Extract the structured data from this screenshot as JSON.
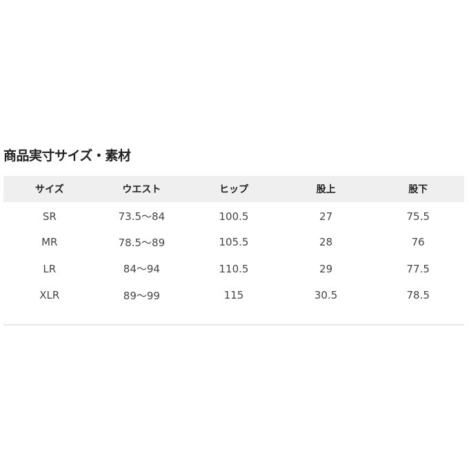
{
  "title": "商品実寸サイズ・素材",
  "table": {
    "headers": [
      "サイズ",
      "ウエスト",
      "ヒップ",
      "股上",
      "股下"
    ],
    "rows": [
      [
        "SR",
        "73.5～84",
        "100.5",
        "27",
        "75.5"
      ],
      [
        "MR",
        "78.5～89",
        "105.5",
        "28",
        "76"
      ],
      [
        "LR",
        "84～94",
        "110.5",
        "29",
        "77.5"
      ],
      [
        "XLR",
        "89～99",
        "115",
        "30.5",
        "78.5"
      ]
    ]
  }
}
